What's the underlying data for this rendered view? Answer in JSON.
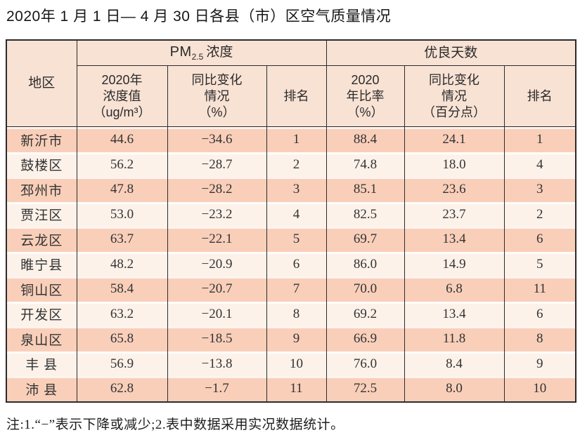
{
  "title": "2020年 1 月 1 日— 4 月 30 日各县（市）区空气质量情况",
  "colors": {
    "border": "#2b2b2b",
    "header_bg": "#f8e2d4",
    "row_odd_bg": "#f9cfba",
    "row_even_bg": "#fdf2ea",
    "text": "#222222"
  },
  "table": {
    "headers": {
      "region": "地区",
      "pm_group": {
        "base": "PM",
        "sub": "2.5",
        "rest": "浓度"
      },
      "days_group": "优良天数",
      "sub_headers": [
        "2020年\n浓度值\n（ug/m³）",
        "同比变化\n情况\n（%）",
        "排名",
        "2020\n年比率\n（%）",
        "同比变化\n情况\n（百分点）",
        "排名"
      ]
    },
    "rows": [
      [
        "新沂市",
        "44.6",
        "−34.6",
        "1",
        "88.4",
        "24.1",
        "1"
      ],
      [
        "鼓楼区",
        "56.2",
        "−28.7",
        "2",
        "74.8",
        "18.0",
        "4"
      ],
      [
        "邳州市",
        "47.8",
        "−28.2",
        "3",
        "85.1",
        "23.6",
        "3"
      ],
      [
        "贾汪区",
        "53.0",
        "−23.2",
        "4",
        "82.5",
        "23.7",
        "2"
      ],
      [
        "云龙区",
        "63.7",
        "−22.1",
        "5",
        "69.7",
        "13.4",
        "6"
      ],
      [
        "睢宁县",
        "48.2",
        "−20.9",
        "6",
        "86.0",
        "14.9",
        "5"
      ],
      [
        "铜山区",
        "58.4",
        "−20.7",
        "7",
        "70.0",
        "6.8",
        "11"
      ],
      [
        "开发区",
        "63.2",
        "−20.1",
        "8",
        "69.2",
        "13.4",
        "6"
      ],
      [
        "泉山区",
        "65.8",
        "−18.5",
        "9",
        "66.9",
        "11.8",
        "8"
      ],
      [
        "丰 县",
        "56.9",
        "−13.8",
        "10",
        "76.0",
        "8.4",
        "9"
      ],
      [
        "沛 县",
        "62.8",
        "−1.7",
        "11",
        "72.5",
        "8.0",
        "10"
      ]
    ]
  },
  "footnote": "注:1.“−”表示下降或减少;2.表中数据采用实况数据统计。"
}
